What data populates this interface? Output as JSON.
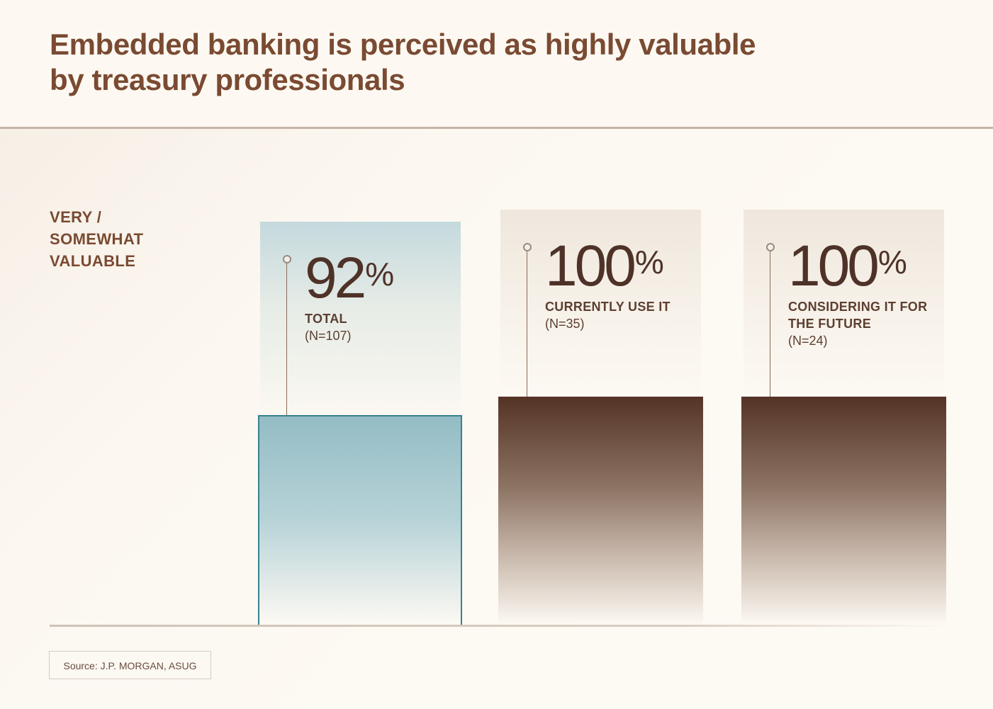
{
  "header": {
    "title_line1": "Embedded banking is perceived as highly valuable",
    "title_line2": "by treasury professionals"
  },
  "y_label": {
    "line1": "VERY /",
    "line2": "SOMEWHAT",
    "line3": "VALUABLE"
  },
  "source": "Source: J.P. MORGAN, ASUG",
  "colors": {
    "title": "#7a4a32",
    "total_bar": "#94bcc4",
    "total_border": "#35838f",
    "segment_bar": "#543326",
    "background": "#fdf9f3"
  },
  "chart_data": {
    "type": "bar",
    "categories": [
      "TOTAL",
      "CURRENTLY USE IT",
      "CONSIDERING IT FOR THE FUTURE"
    ],
    "values": [
      92,
      100,
      100
    ],
    "value_labels": [
      "92",
      "100",
      "100"
    ],
    "unit": "%",
    "sample_sizes": [
      "(N=107)",
      "(N=35)",
      "(N=24)"
    ],
    "ylabel": "VERY / SOMEWHAT VALUABLE",
    "ylim": [
      0,
      100
    ],
    "grid": false
  }
}
